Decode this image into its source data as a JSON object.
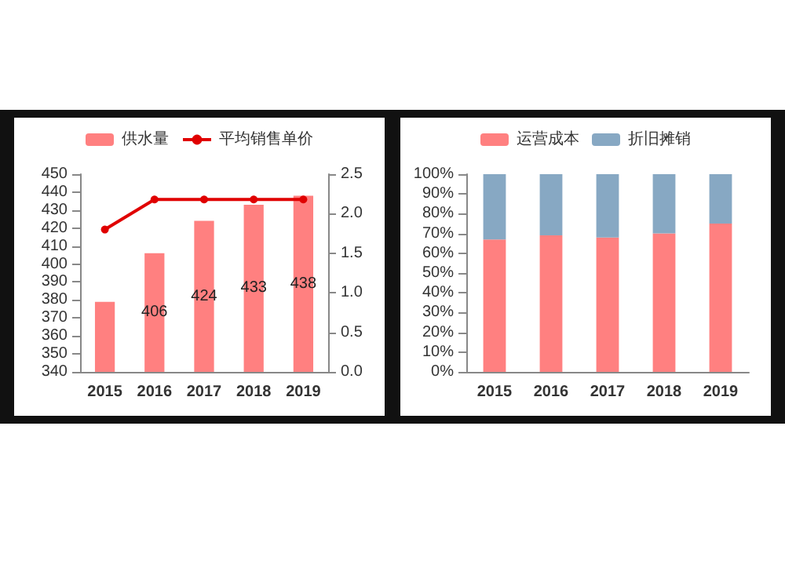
{
  "chart_data": [
    {
      "type": "bar",
      "categories": [
        "2015",
        "2016",
        "2017",
        "2018",
        "2019"
      ],
      "legend": "top",
      "grid": false,
      "series": [
        {
          "name": "供水量",
          "color": "#ff8080",
          "values": [
            379,
            406,
            424,
            433,
            438
          ],
          "value_labels": [
            null,
            "406",
            "424",
            "433",
            "438"
          ]
        },
        {
          "name": "平均销售单价",
          "type": "line",
          "axis": "y2",
          "color": "#e00000",
          "marker": "circle",
          "values": [
            1.8,
            2.18,
            2.18,
            2.18,
            2.18
          ]
        }
      ],
      "ylim": [
        340,
        450
      ],
      "yticks": [
        340,
        350,
        360,
        370,
        380,
        390,
        400,
        410,
        420,
        430,
        440,
        450
      ],
      "y2lim": [
        0,
        2.5
      ],
      "y2ticks": [
        {
          "value": 0,
          "label": "0.0"
        },
        {
          "value": 0.5,
          "label": "0.5"
        },
        {
          "value": 1,
          "label": "1.0"
        },
        {
          "value": 1.5,
          "label": "1.5"
        },
        {
          "value": 2,
          "label": "2.0"
        },
        {
          "value": 2.5,
          "label": "2.5"
        }
      ]
    },
    {
      "type": "bar",
      "categories": [
        "2015",
        "2016",
        "2017",
        "2018",
        "2019"
      ],
      "legend": "top",
      "grid": false,
      "stacked": true,
      "series": [
        {
          "name": "运营成本",
          "color": "#ff8080",
          "values": [
            67,
            69,
            68,
            70,
            75
          ]
        },
        {
          "name": "折旧摊销",
          "color": "#87a8c3",
          "values": [
            33,
            31,
            32,
            30,
            25
          ]
        }
      ],
      "ylim": [
        0,
        100
      ],
      "yticks": [
        {
          "value": 0,
          "label": "0%"
        },
        {
          "value": 10,
          "label": "10%"
        },
        {
          "value": 20,
          "label": "20%"
        },
        {
          "value": 30,
          "label": "30%"
        },
        {
          "value": 40,
          "label": "40%"
        },
        {
          "value": 50,
          "label": "50%"
        },
        {
          "value": 60,
          "label": "60%"
        },
        {
          "value": 70,
          "label": "70%"
        },
        {
          "value": 80,
          "label": "80%"
        },
        {
          "value": 90,
          "label": "90%"
        },
        {
          "value": 100,
          "label": "100%"
        }
      ]
    }
  ]
}
